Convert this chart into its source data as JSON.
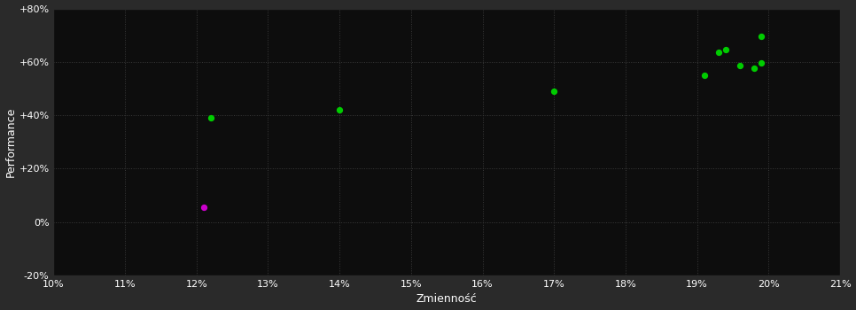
{
  "background_color": "#2a2a2a",
  "plot_bg_color": "#0d0d0d",
  "grid_color": "#3a3a3a",
  "xlabel": "Zmienność",
  "ylabel": "Performance",
  "xlabel_color": "#ffffff",
  "ylabel_color": "#ffffff",
  "tick_color": "#ffffff",
  "xlim": [
    0.1,
    0.21
  ],
  "ylim": [
    -0.2,
    0.8
  ],
  "xticks": [
    0.1,
    0.11,
    0.12,
    0.13,
    0.14,
    0.15,
    0.16,
    0.17,
    0.18,
    0.19,
    0.2,
    0.21
  ],
  "yticks": [
    -0.2,
    0.0,
    0.2,
    0.4,
    0.6,
    0.8
  ],
  "ytick_labels": [
    "-20%",
    "0%",
    "+20%",
    "+40%",
    "+60%",
    "+80%"
  ],
  "xtick_labels": [
    "10%",
    "11%",
    "12%",
    "13%",
    "14%",
    "15%",
    "16%",
    "17%",
    "18%",
    "19%",
    "20%",
    "21%"
  ],
  "green_points": [
    [
      0.122,
      0.39
    ],
    [
      0.14,
      0.42
    ],
    [
      0.17,
      0.49
    ],
    [
      0.191,
      0.55
    ],
    [
      0.193,
      0.635
    ],
    [
      0.194,
      0.645
    ],
    [
      0.196,
      0.585
    ],
    [
      0.198,
      0.575
    ],
    [
      0.199,
      0.595
    ],
    [
      0.199,
      0.695
    ]
  ],
  "magenta_points": [
    [
      0.121,
      0.055
    ]
  ],
  "green_color": "#00cc00",
  "magenta_color": "#cc00cc",
  "marker_size": 18
}
